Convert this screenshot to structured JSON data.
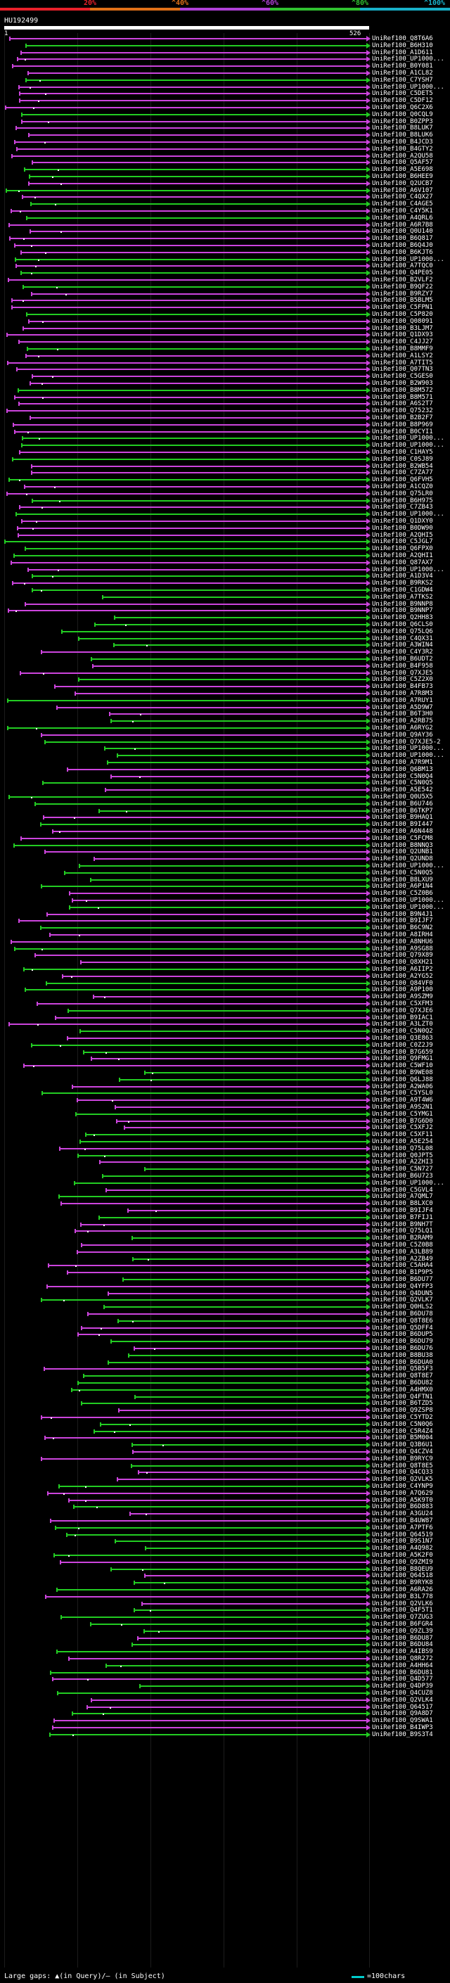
{
  "legend": {
    "segments": [
      {
        "label": "20%",
        "color": "#e8202a"
      },
      {
        "label": "^40%",
        "color": "#e07018"
      },
      {
        "label": "^60%",
        "color": "#b040d8"
      },
      {
        "label": "^80%",
        "color": "#30c030"
      },
      {
        "label": "^100%",
        "color": "#18b0c8"
      }
    ]
  },
  "query": {
    "name": "HU192499",
    "start": "1",
    "end": "526"
  },
  "colors": {
    "purple": "#cc44dd",
    "green": "#22cc22"
  },
  "hits": [
    "UniRef100_Q8T6A6",
    "UniRef100_B6H310",
    "UniRef100_A1D611",
    "UniRef100_UP1000...",
    "UniRef100_B0Y081",
    "UniRef100_A1CL82",
    "UniRef100_C7YSH7",
    "UniRef100_UP1000...",
    "UniRef100_C5DET5",
    "UniRef100_C5DF12",
    "UniRef100_Q6C2X6",
    "UniRef100_Q0CQL9",
    "UniRef100_B0ZPP3",
    "UniRef100_B8LUK7",
    "UniRef100_B8LUK6",
    "UniRef100_B4JCD3",
    "UniRef100_B4GTY2",
    "UniRef100_A2QU58",
    "UniRef100_Q5AF57",
    "UniRef100_A5E698",
    "UniRef100_B6HEE9",
    "UniRef100_Q2UCB7",
    "UniRef100_A6V107",
    "UniRef100_C4QX27",
    "UniRef100_C4AGE5",
    "UniRef100_C4Y5K1",
    "UniRef100_A4QRL6",
    "UniRef100_A6R7B8",
    "UniRef100_Q0U140",
    "UniRef100_B6Q817",
    "UniRef100_B6Q4J0",
    "UniRef100_B6KJT6",
    "UniRef100_UP1000...",
    "UniRef100_A7TQC0",
    "UniRef100_Q4PE05",
    "UniRef100_B2VLF2",
    "UniRef100_B9QF22",
    "UniRef100_B9RZY7",
    "UniRef100_B5BLM5",
    "UniRef100_C5FPN1",
    "UniRef100_C5P820",
    "UniRef100_Q08091",
    "UniRef100_B3LJM7",
    "UniRef100_Q1DX93",
    "UniRef100_C4JJ27",
    "UniRef100_B8MMF9",
    "UniRef100_A1LSY2",
    "UniRef100_A7TIT5",
    "UniRef100_Q07TN3",
    "UniRef100_C5GES0",
    "UniRef100_B2W903",
    "UniRef100_B8M572",
    "UniRef100_B8M571",
    "UniRef100_A6S2T7",
    "UniRef100_Q75232",
    "UniRef100_B2B2F7",
    "UniRef100_B8P969",
    "UniRef100_B0CYI1",
    "UniRef100_UP1000...",
    "UniRef100_UP1000...",
    "UniRef100_C1HAY5",
    "UniRef100_C0SJ89",
    "UniRef100_B2WB54",
    "UniRef100_C7ZA77",
    "UniRef100_Q6FVH5",
    "UniRef100_A1CQZ0",
    "UniRef100_Q75LR0",
    "UniRef100_B6H975",
    "UniRef100_C7ZB43",
    "UniRef100_UP1000...",
    "UniRef100_Q1DXY0",
    "UniRef100_B0DW90",
    "UniRef100_A2QHI5",
    "UniRef100_C5JGL7",
    "UniRef100_Q6FPX0",
    "UniRef100_A2QHI1",
    "UniRef100_Q87AX7",
    "UniRef100_UP1000...",
    "UniRef100_A1D3V4",
    "UniRef100_B9RKS2",
    "UniRef100_C1GDW4",
    "UniRef100_A7TKS2",
    "UniRef100_B9NNP8",
    "UniRef100_B9NNP7",
    "UniRef100_Q2HH83",
    "UniRef100_Q6CLS0",
    "UniRef100_Q75LQ6",
    "UniRef100_C4QX31",
    "UniRef100_A3WIN4",
    "UniRef100_C4Y3R2",
    "UniRef100_B6UDT2",
    "UniRef100_B4F958",
    "UniRef100_Q7XJE5",
    "UniRef100_C5Z2X0",
    "UniRef100_B4FB73",
    "UniRef100_A7R8M3",
    "UniRef100_A7RUY1",
    "UniRef100_A5D9W7",
    "UniRef100_B6T3H0",
    "UniRef100_A2RB75",
    "UniRef100_A6RYG2",
    "UniRef100_Q9AY36",
    "UniRef100_Q7XJE5-2",
    "UniRef100_UP1000...",
    "UniRef100_UP1000...",
    "UniRef100_A7R9M1",
    "UniRef100_Q6BM13",
    "UniRef100_C5N0Q4",
    "UniRef100_C5N0Q5",
    "UniRef100_A5E542",
    "UniRef100_Q0U5X5",
    "UniRef100_B6U746",
    "UniRef100_B6TKP7",
    "UniRef100_B9HAQ1",
    "UniRef100_B9I447",
    "UniRef100_A6N448",
    "UniRef100_C5FCM8",
    "UniRef100_B8NNQ3",
    "UniRef100_Q2UNB1",
    "UniRef100_Q2UND8",
    "UniRef100_UP1000...",
    "UniRef100_C5N0Q5",
    "UniRef100_B8LXU9",
    "UniRef100_A6P1N4",
    "UniRef100_C5Z0B6",
    "UniRef100_UP1000...",
    "UniRef100_UP1000...",
    "UniRef100_B9N4J1",
    "UniRef100_B9IJF7",
    "UniRef100_B6C9N2",
    "UniRef100_A8IRH4",
    "UniRef100_A8NHU6",
    "UniRef100_A9SG88",
    "UniRef100_Q79X89",
    "UniRef100_Q8XH21",
    "UniRef100_A6IIP2",
    "UniRef100_A2YG52",
    "UniRef100_Q84VF0",
    "UniRef100_A9P100",
    "UniRef100_A9SZM9",
    "UniRef100_C5XFM3",
    "UniRef100_Q7XJE6",
    "UniRef100_B9IAC1",
    "UniRef100_A3LZT0",
    "UniRef100_C5N0Q2",
    "UniRef100_Q3E863",
    "UniRef100_C0Z2J9",
    "UniRef100_B7G659",
    "UniRef100_Q9FMG1",
    "UniRef100_C5WF10",
    "UniRef100_B9WE08",
    "UniRef100_Q6LJ88",
    "UniRef100_A2WA06",
    "UniRef100_C5YSL0",
    "UniRef100_A9T4W6",
    "UniRef100_A9S2N1",
    "UniRef100_C5YMG1",
    "UniRef100_B7G6D0",
    "UniRef100_C5XFJ2",
    "UniRef100_C5XF11",
    "UniRef100_A5E254",
    "UniRef100_Q75L08",
    "UniRef100_Q0JPT5",
    "UniRef100_A2ZHI3",
    "UniRef100_C5N727",
    "UniRef100_B6U723",
    "UniRef100_UP1000...",
    "UniRef100_C5GVL4",
    "UniRef100_A7QML7",
    "UniRef100_B8LXC0",
    "UniRef100_B9IJF4",
    "UniRef100_B7FIJ1",
    "UniRef100_B9NH7T",
    "UniRef100_Q75LQ1",
    "UniRef100_B2RAM9",
    "UniRef100_C5Z0B8",
    "UniRef100_A3LB89",
    "UniRef100_A2ZB49",
    "UniRef100_C5AHA4",
    "UniRef100_B1P9P5",
    "UniRef100_B6DU77",
    "UniRef100_Q4YFP3",
    "UniRef100_Q4DUN5",
    "UniRef100_Q2VLK7",
    "UniRef100_Q0HLS2",
    "UniRef100_B6DU78",
    "UniRef100_Q8T8E6",
    "UniRef100_Q5DFF4",
    "UniRef100_B6DUP5",
    "UniRef100_B6DU79",
    "UniRef100_B6DU76",
    "UniRef100_B8BU38",
    "UniRef100_B6DUA0",
    "UniRef100_Q5B5F3",
    "UniRef100_Q8T8E7",
    "UniRef100_B6DU82",
    "UniRef100_A4HMX0",
    "UniRef100_Q4FTN1",
    "UniRef100_B6TZD5",
    "UniRef100_Q9ZSP8",
    "UniRef100_C5YTD2",
    "UniRef100_C5N0Q6",
    "UniRef100_C5R4Z4",
    "UniRef100_B5M004",
    "UniRef100_Q3B6U1",
    "UniRef100_Q4CZV4",
    "UniRef100_B9RYC9",
    "UniRef100_Q8T8E5",
    "UniRef100_Q4CQ33",
    "UniRef100_Q2VLK5",
    "UniRef100_C4YNP9",
    "UniRef100_A7Q629",
    "UniRef100_A5K9T0",
    "UniRef100_B6D883",
    "UniRef100_A3GU24",
    "UniRef100_B4UW87",
    "UniRef100_A7PTF6",
    "UniRef100_Q64519",
    "UniRef100_B9S1N7",
    "UniRef100_A4Q982",
    "UniRef100_A5K2F0",
    "UniRef100_Q9ZMI9",
    "UniRef100_B8QEU9",
    "UniRef100_Q64518",
    "UniRef100_B9RYK8",
    "UniRef100_A6RA26",
    "UniRef100_B3L778",
    "UniRef100_Q2VLK6",
    "UniRef100_Q4F5T1",
    "UniRef100_Q7ZUG3",
    "UniRef100_B6FGR4",
    "UniRef100_Q9ZL39",
    "UniRef100_B6DU87",
    "UniRef100_B6DU84",
    "UniRef100_A4IBS9",
    "UniRef100_Q8R272",
    "UniRef100_A4HH64",
    "UniRef100_B6DU81",
    "UniRef100_Q4D577",
    "UniRef100_Q4DP39",
    "UniRef100_Q4CUZ8",
    "UniRef100_Q2VLK4",
    "UniRef100_Q64517",
    "UniRef100_Q9A8D7",
    "UniRef100_Q9SWA1",
    "UniRef100_B4IWP3",
    "UniRef100_B9S3T4"
  ],
  "footer": {
    "gaps_label": "Large gaps: ▲(in Query)/– (in Subject)",
    "scale_label": "=100chars"
  }
}
